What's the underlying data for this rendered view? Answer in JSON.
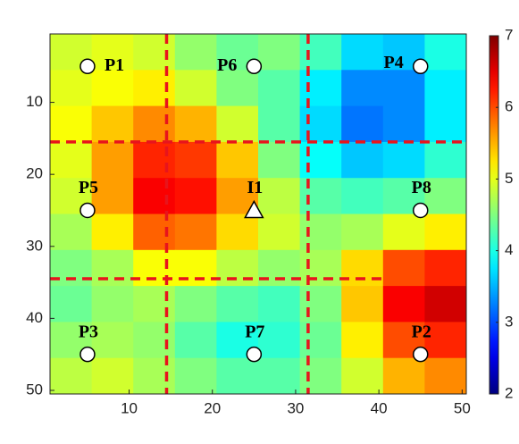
{
  "chart_data": {
    "type": "heatmap",
    "xlim": [
      0.5,
      50.5
    ],
    "ylim": [
      0.5,
      50.5
    ],
    "xticks": [
      10,
      20,
      30,
      40,
      50
    ],
    "yticks": [
      10,
      20,
      30,
      40,
      50
    ],
    "clim": [
      2,
      7
    ],
    "cticks": [
      2,
      3,
      4,
      5,
      6,
      7
    ],
    "colormap": "jet",
    "grid_values": [
      [
        4.9,
        5.0,
        4.9,
        4.6,
        4.4,
        4.5,
        4.2,
        3.7,
        3.6,
        4.0
      ],
      [
        5.0,
        5.1,
        5.2,
        4.9,
        4.5,
        4.3,
        3.8,
        3.3,
        3.3,
        3.8
      ],
      [
        5.1,
        5.4,
        5.7,
        5.5,
        4.9,
        4.3,
        3.7,
        3.2,
        3.3,
        3.8
      ],
      [
        5.0,
        5.6,
        6.2,
        6.1,
        5.4,
        4.5,
        3.9,
        3.6,
        3.7,
        4.1
      ],
      [
        4.9,
        5.6,
        6.4,
        6.3,
        5.6,
        4.8,
        4.3,
        4.2,
        4.3,
        4.5
      ],
      [
        4.7,
        5.2,
        5.9,
        5.8,
        5.3,
        4.9,
        4.6,
        4.7,
        5.0,
        5.2
      ],
      [
        4.5,
        4.7,
        5.1,
        5.1,
        4.8,
        4.6,
        4.7,
        5.3,
        6.0,
        6.2
      ],
      [
        4.4,
        4.6,
        4.7,
        4.5,
        4.3,
        4.2,
        4.5,
        5.4,
        6.4,
        6.6
      ],
      [
        4.6,
        4.7,
        4.6,
        4.3,
        4.0,
        4.1,
        4.4,
        5.2,
        6.0,
        6.2
      ],
      [
        4.8,
        4.9,
        4.7,
        4.5,
        4.3,
        4.3,
        4.5,
        4.9,
        5.5,
        5.7
      ]
    ],
    "points": [
      {
        "label": "P1",
        "x": 5,
        "y": 5,
        "marker": "circle",
        "label_side": "right"
      },
      {
        "label": "P6",
        "x": 25,
        "y": 5,
        "marker": "circle",
        "label_side": "left"
      },
      {
        "label": "P4",
        "x": 45,
        "y": 5,
        "marker": "circle",
        "label_side": "left"
      },
      {
        "label": "P5",
        "x": 5,
        "y": 25,
        "marker": "circle",
        "label_side": "top"
      },
      {
        "label": "I1",
        "x": 25,
        "y": 25,
        "marker": "triangle",
        "label_side": "top"
      },
      {
        "label": "P8",
        "x": 45,
        "y": 25,
        "marker": "circle",
        "label_side": "top"
      },
      {
        "label": "P3",
        "x": 5,
        "y": 45,
        "marker": "circle",
        "label_side": "top"
      },
      {
        "label": "P7",
        "x": 25,
        "y": 45,
        "marker": "circle",
        "label_side": "top"
      },
      {
        "label": "P2",
        "x": 45,
        "y": 45,
        "marker": "circle",
        "label_side": "top"
      }
    ],
    "dividers": [
      {
        "x": [
          14.5,
          14.5
        ],
        "y": [
          0.5,
          50.5
        ]
      },
      {
        "x": [
          31.5,
          31.5
        ],
        "y": [
          0.5,
          50.5
        ]
      },
      {
        "x": [
          0.5,
          50.5
        ],
        "y": [
          15.5,
          15.5
        ]
      },
      {
        "x": [
          0.5,
          40.5
        ],
        "y": [
          34.5,
          34.5
        ]
      }
    ],
    "divider_color": "#e8141c"
  }
}
